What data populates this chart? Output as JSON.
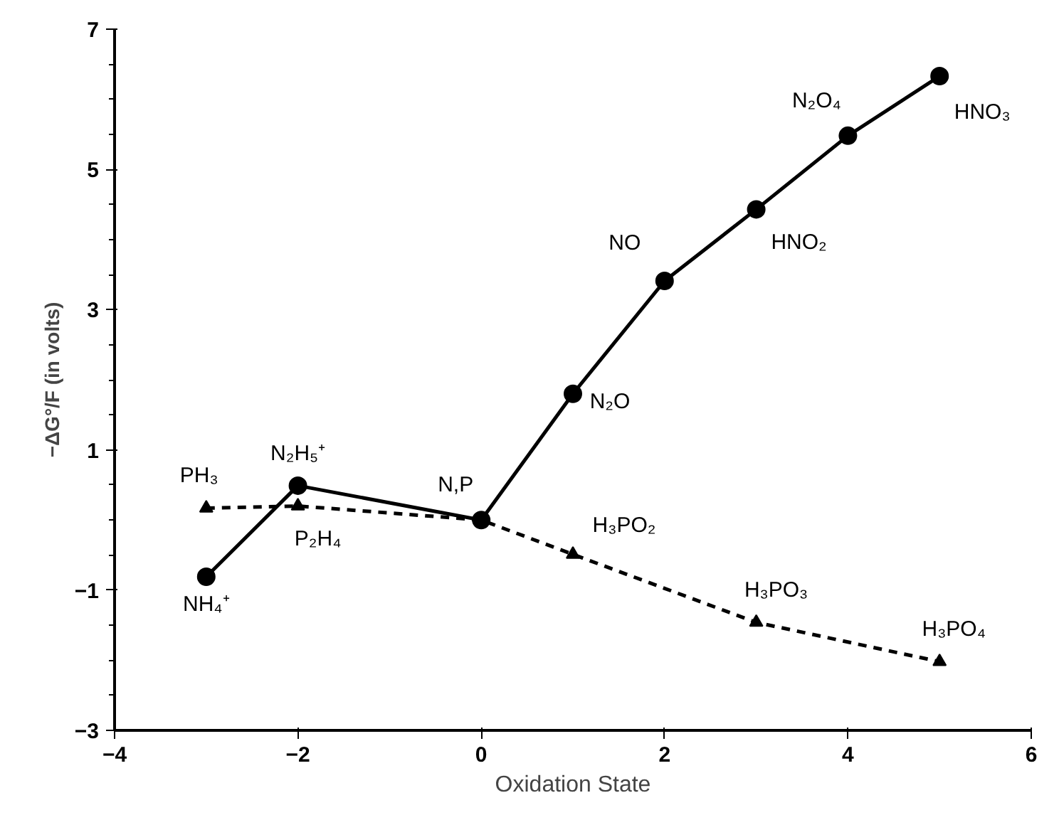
{
  "chart_data": {
    "type": "line",
    "xlabel": "Oxidation State",
    "ylabel": "−ΔG°/F (in volts)",
    "xlim": [
      -4,
      6
    ],
    "xticks": [
      -4,
      -2,
      0,
      2,
      4,
      6
    ],
    "ylim": [
      -3,
      7
    ],
    "yticks": [
      -3,
      -1,
      1,
      3,
      5,
      7
    ],
    "series": [
      {
        "color": "#000000",
        "marker": "circle",
        "line_style": "solid",
        "x": [
          -3,
          -2,
          0,
          1,
          2,
          3,
          4,
          5
        ],
        "values": [
          -0.81,
          0.49,
          0.0,
          1.8,
          3.41,
          4.43,
          5.48,
          6.33
        ]
      },
      {
        "color": "#000000",
        "marker": "triangle",
        "line_style": "dashed",
        "x": [
          -3,
          -2,
          0,
          1,
          3,
          5
        ],
        "values": [
          0.17,
          0.2,
          0.0,
          -0.49,
          -1.46,
          -2.02
        ]
      }
    ],
    "annotations": [
      {
        "text": "NH₄⁺",
        "x": -3,
        "y": -0.81
      },
      {
        "text": "N₂H₅⁺",
        "x": -2,
        "y": 0.49
      },
      {
        "text": "N,P",
        "x": 0,
        "y": 0.0
      },
      {
        "text": "N₂O",
        "x": 1,
        "y": 1.8
      },
      {
        "text": "NO",
        "x": 2,
        "y": 3.41
      },
      {
        "text": "HNO₂",
        "x": 3,
        "y": 4.43
      },
      {
        "text": "N₂O₄",
        "x": 4,
        "y": 5.48
      },
      {
        "text": "HNO₃",
        "x": 5,
        "y": 6.33
      },
      {
        "text": "PH₃",
        "x": -3,
        "y": 0.17
      },
      {
        "text": "P₂H₄",
        "x": -2,
        "y": 0.2
      },
      {
        "text": "H₃PO₂",
        "x": 1,
        "y": -0.49
      },
      {
        "text": "H₃PO₃",
        "x": 3,
        "y": -1.46
      },
      {
        "text": "H₃PO₄",
        "x": 5,
        "y": -2.02
      }
    ]
  }
}
